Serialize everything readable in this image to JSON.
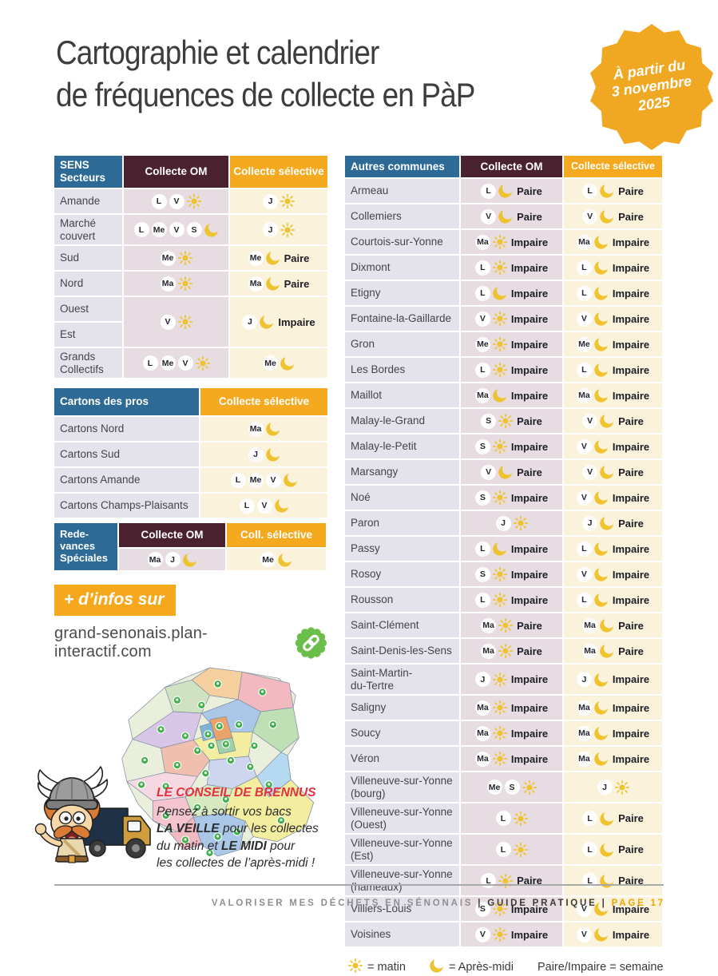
{
  "page": {
    "title_line1": "Cartographie et calendrier",
    "title_line2": "de fréquences de collecte en PàP"
  },
  "badge": {
    "line1": "À partir du",
    "line2": "3 novembre",
    "line3": "2025",
    "color": "#f0a822"
  },
  "colors": {
    "header_blue": "#2d6a95",
    "header_maroon": "#4a212e",
    "header_yellow": "#f5a91f",
    "name_cell_bg": "#e4e3ec",
    "om_cell_bg": "#e6dce1",
    "selective_cell_bg": "#fbf2dc",
    "sun_moon_yellow": "#eec32f",
    "advice_red": "#e5303e",
    "link_green": "#6abf4b",
    "page_number_orange": "#f0a500"
  },
  "icons": {
    "sun": "sun-icon",
    "moon": "moon-icon",
    "link": "link-icon"
  },
  "sens_table": {
    "col1_header": "SENS\nSecteurs",
    "col2_header": "Collecte OM",
    "col3_header": "Collecte sélective",
    "rows": [
      {
        "name": "Amande",
        "om": {
          "days": [
            "L",
            "V"
          ],
          "time": "sun"
        },
        "sel": {
          "days": [
            "J"
          ],
          "time": "sun"
        }
      },
      {
        "name": "Marché couvert",
        "om": {
          "days": [
            "L",
            "Me",
            "V",
            "S"
          ],
          "time": "moon"
        },
        "sel": {
          "days": [
            "J"
          ],
          "time": "sun"
        }
      },
      {
        "name": "Sud",
        "om": {
          "days": [
            "Me"
          ],
          "time": "sun"
        },
        "sel": {
          "days": [
            "Me"
          ],
          "time": "moon",
          "week": "Paire"
        }
      },
      {
        "name": "Nord",
        "om": {
          "days": [
            "Ma"
          ],
          "time": "sun"
        },
        "sel": {
          "days": [
            "Ma"
          ],
          "time": "moon",
          "week": "Paire"
        }
      },
      {
        "name": "Ouest",
        "name2": "Est",
        "merged": true,
        "om": {
          "days": [
            "V"
          ],
          "time": "sun"
        },
        "sel": {
          "days": [
            "J"
          ],
          "time": "moon",
          "week": "Impaire"
        }
      },
      {
        "name": "Grands Collectifs",
        "om": {
          "days": [
            "L",
            "Me",
            "V"
          ],
          "time": "sun"
        },
        "sel": {
          "days": [
            "Me"
          ],
          "time": "moon"
        }
      }
    ]
  },
  "cartons_table": {
    "col1_header": "Cartons des pros",
    "col2_header": "Collecte sélective",
    "rows": [
      {
        "name": "Cartons Nord",
        "sel": {
          "days": [
            "Ma"
          ],
          "time": "moon"
        }
      },
      {
        "name": "Cartons Sud",
        "sel": {
          "days": [
            "J"
          ],
          "time": "moon"
        }
      },
      {
        "name": "Cartons Amande",
        "sel": {
          "days": [
            "L",
            "Me",
            "V"
          ],
          "time": "moon"
        }
      },
      {
        "name": "Cartons Champs-Plaisants",
        "sel": {
          "days": [
            "L",
            "V"
          ],
          "time": "moon"
        }
      }
    ]
  },
  "redevances_table": {
    "col1_header": "Rede-\nvances\nSpéciales",
    "col2_header": "Collecte OM",
    "col3_header": "Coll. sélective",
    "row": {
      "om": {
        "days": [
          "Ma",
          "J"
        ],
        "time": "moon"
      },
      "sel": {
        "days": [
          "Me"
        ],
        "time": "moon"
      }
    }
  },
  "communes_table": {
    "col1_header": "Autres communes",
    "col2_header": "Collecte OM",
    "col3_header": "Collecte sélective",
    "rows": [
      {
        "name": "Armeau",
        "om": {
          "days": [
            "L"
          ],
          "time": "moon",
          "week": "Paire"
        },
        "sel": {
          "days": [
            "L"
          ],
          "time": "moon",
          "week": "Paire"
        }
      },
      {
        "name": "Collemiers",
        "om": {
          "days": [
            "V"
          ],
          "time": "moon",
          "week": "Paire"
        },
        "sel": {
          "days": [
            "V"
          ],
          "time": "moon",
          "week": "Paire"
        }
      },
      {
        "name": "Courtois-sur-Yonne",
        "om": {
          "days": [
            "Ma"
          ],
          "time": "sun",
          "week": "Impaire"
        },
        "sel": {
          "days": [
            "Ma"
          ],
          "time": "moon",
          "week": "Impaire"
        }
      },
      {
        "name": "Dixmont",
        "om": {
          "days": [
            "L"
          ],
          "time": "sun",
          "week": "Impaire"
        },
        "sel": {
          "days": [
            "L"
          ],
          "time": "moon",
          "week": "Impaire"
        }
      },
      {
        "name": "Etigny",
        "om": {
          "days": [
            "L"
          ],
          "time": "moon",
          "week": "Impaire"
        },
        "sel": {
          "days": [
            "L"
          ],
          "time": "moon",
          "week": "Impaire"
        }
      },
      {
        "name": "Fontaine-la-Gaillarde",
        "om": {
          "days": [
            "V"
          ],
          "time": "sun",
          "week": "Impaire"
        },
        "sel": {
          "days": [
            "V"
          ],
          "time": "moon",
          "week": "Impaire"
        }
      },
      {
        "name": "Gron",
        "om": {
          "days": [
            "Me"
          ],
          "time": "sun",
          "week": "Impaire"
        },
        "sel": {
          "days": [
            "Me"
          ],
          "time": "moon",
          "week": "Impaire"
        }
      },
      {
        "name": "Les Bordes",
        "om": {
          "days": [
            "L"
          ],
          "time": "sun",
          "week": "Impaire"
        },
        "sel": {
          "days": [
            "L"
          ],
          "time": "moon",
          "week": "Impaire"
        }
      },
      {
        "name": "Maillot",
        "om": {
          "days": [
            "Ma"
          ],
          "time": "moon",
          "week": "Impaire"
        },
        "sel": {
          "days": [
            "Ma"
          ],
          "time": "moon",
          "week": "Impaire"
        }
      },
      {
        "name": "Malay-le-Grand",
        "om": {
          "days": [
            "S"
          ],
          "time": "sun",
          "week": "Paire"
        },
        "sel": {
          "days": [
            "V"
          ],
          "time": "moon",
          "week": "Paire"
        }
      },
      {
        "name": "Malay-le-Petit",
        "om": {
          "days": [
            "S"
          ],
          "time": "sun",
          "week": "Impaire"
        },
        "sel": {
          "days": [
            "V"
          ],
          "time": "moon",
          "week": "Impaire"
        }
      },
      {
        "name": "Marsangy",
        "om": {
          "days": [
            "V"
          ],
          "time": "moon",
          "week": "Paire"
        },
        "sel": {
          "days": [
            "V"
          ],
          "time": "moon",
          "week": "Paire"
        }
      },
      {
        "name": "Noé",
        "om": {
          "days": [
            "S"
          ],
          "time": "sun",
          "week": "Impaire"
        },
        "sel": {
          "days": [
            "V"
          ],
          "time": "moon",
          "week": "Impaire"
        }
      },
      {
        "name": "Paron",
        "om": {
          "days": [
            "J"
          ],
          "time": "sun"
        },
        "sel": {
          "days": [
            "J"
          ],
          "time": "moon",
          "week": "Paire"
        }
      },
      {
        "name": "Passy",
        "om": {
          "days": [
            "L"
          ],
          "time": "moon",
          "week": "Impaire"
        },
        "sel": {
          "days": [
            "L"
          ],
          "time": "moon",
          "week": "Impaire"
        }
      },
      {
        "name": "Rosoy",
        "om": {
          "days": [
            "S"
          ],
          "time": "sun",
          "week": "Impaire"
        },
        "sel": {
          "days": [
            "V"
          ],
          "time": "moon",
          "week": "Impaire"
        }
      },
      {
        "name": "Rousson",
        "om": {
          "days": [
            "L"
          ],
          "time": "sun",
          "week": "Impaire"
        },
        "sel": {
          "days": [
            "L"
          ],
          "time": "moon",
          "week": "Impaire"
        }
      },
      {
        "name": "Saint-Clément",
        "om": {
          "days": [
            "Ma"
          ],
          "time": "sun",
          "week": "Paire"
        },
        "sel": {
          "days": [
            "Ma"
          ],
          "time": "moon",
          "week": "Paire"
        }
      },
      {
        "name": "Saint-Denis-les-Sens",
        "om": {
          "days": [
            "Ma"
          ],
          "time": "sun",
          "week": "Paire"
        },
        "sel": {
          "days": [
            "Ma"
          ],
          "time": "moon",
          "week": "Paire"
        }
      },
      {
        "name": "Saint-Martin-\ndu-Tertre",
        "om": {
          "days": [
            "J"
          ],
          "time": "sun",
          "week": "Impaire"
        },
        "sel": {
          "days": [
            "J"
          ],
          "time": "moon",
          "week": "Impaire"
        }
      },
      {
        "name": "Saligny",
        "om": {
          "days": [
            "Ma"
          ],
          "time": "sun",
          "week": "Impaire"
        },
        "sel": {
          "days": [
            "Ma"
          ],
          "time": "moon",
          "week": "Impaire"
        }
      },
      {
        "name": "Soucy",
        "om": {
          "days": [
            "Ma"
          ],
          "time": "sun",
          "week": "Impaire"
        },
        "sel": {
          "days": [
            "Ma"
          ],
          "time": "moon",
          "week": "Impaire"
        }
      },
      {
        "name": "Véron",
        "om": {
          "days": [
            "Ma"
          ],
          "time": "sun",
          "week": "Impaire"
        },
        "sel": {
          "days": [
            "Ma"
          ],
          "time": "moon",
          "week": "Impaire"
        }
      },
      {
        "name": "Villeneuve-sur-Yonne\n(bourg)",
        "om": {
          "days": [
            "Me",
            "S"
          ],
          "time": "sun"
        },
        "sel": {
          "days": [
            "J"
          ],
          "time": "sun"
        }
      },
      {
        "name": "Villeneuve-sur-Yonne\n(Ouest)",
        "om": {
          "days": [
            "L"
          ],
          "time": "sun"
        },
        "sel": {
          "days": [
            "L"
          ],
          "time": "moon",
          "week": "Paire"
        }
      },
      {
        "name": "Villeneuve-sur-Yonne\n(Est)",
        "om": {
          "days": [
            "L"
          ],
          "time": "sun"
        },
        "sel": {
          "days": [
            "L"
          ],
          "time": "moon",
          "week": "Paire"
        }
      },
      {
        "name": "Villeneuve-sur-Yonne\n(hameaux)",
        "om": {
          "days": [
            "L"
          ],
          "time": "sun",
          "week": "Paire"
        },
        "sel": {
          "days": [
            "L"
          ],
          "time": "moon",
          "week": "Paire"
        }
      },
      {
        "name": "Villiers-Louis",
        "om": {
          "days": [
            "S"
          ],
          "time": "sun",
          "week": "Impaire"
        },
        "sel": {
          "days": [
            "V"
          ],
          "time": "moon",
          "week": "Impaire"
        }
      },
      {
        "name": "Voisines",
        "om": {
          "days": [
            "V"
          ],
          "time": "sun",
          "week": "Impaire"
        },
        "sel": {
          "days": [
            "V"
          ],
          "time": "moon",
          "week": "Impaire"
        }
      }
    ]
  },
  "legend": {
    "sun_label": "= matin",
    "moon_label": "= Après-midi",
    "week_label": "Paire/Impaire = semaine"
  },
  "infos": {
    "label": "+ d’infos sur",
    "url": "grand-senonais.plan-interactif.com"
  },
  "conseil": {
    "title": "LE CONSEIL DE BRENNUS",
    "line1": "Pensez à sortir vos bacs",
    "line2_bold": "LA VEILLE",
    "line2_rest": " pour les collectes",
    "line3_pre": "du matin et ",
    "line3_bold": "LE MIDI",
    "line3_post": " pour",
    "line4": "les collectes de l’après-midi !"
  },
  "footer": {
    "left": "VALORISER MES DÉCHETS EN SÉNONAIS",
    "sep": "|",
    "middle": "GUIDE PRATIQUE",
    "right": "PAGE 17"
  }
}
